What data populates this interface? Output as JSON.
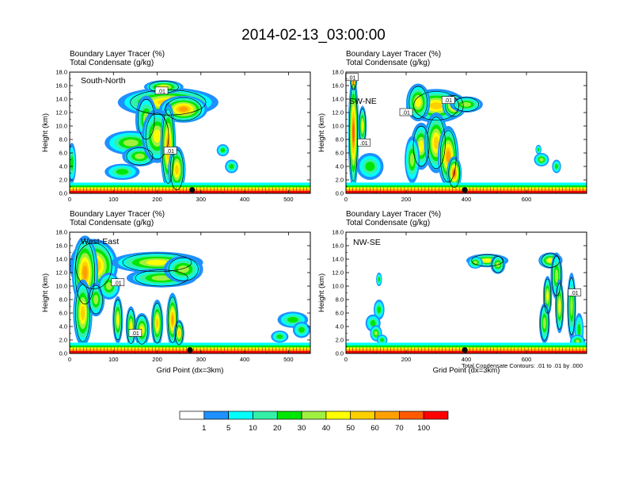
{
  "title": "2014-02-13_03:00:00",
  "colors": {
    "levels": [
      "#ffffff",
      "#1e90ff",
      "#00ffff",
      "#33f0a8",
      "#00e600",
      "#a0f040",
      "#ffff00",
      "#ffd000",
      "#ffa000",
      "#ff5a00",
      "#ff0000"
    ]
  },
  "chart_data": [
    {
      "type": "heatmap",
      "name": "South-North",
      "panel_label": "South-North",
      "field1": "Boundary Layer Tracer   (%)",
      "field2": "Total Condensate   (g/kg)",
      "ylabel": "Height (km)",
      "xlabel": "",
      "x_ticks": [
        "0",
        "100",
        "200",
        "300",
        "400",
        "500"
      ],
      "y_ticks": [
        "0.0",
        "2.0",
        "4.0",
        "6.0",
        "8.0",
        "10.0",
        "12.0",
        "14.0",
        "16.0",
        "18.0"
      ],
      "xlim": [
        0,
        550
      ],
      "ylim": [
        0,
        18
      ],
      "contour_labels": [
        ".01",
        ".01"
      ],
      "marker_x": 280,
      "blobs": [
        {
          "x": 50,
          "y": 15.0,
          "rx": 22,
          "ry": 2.6,
          "v": 40
        },
        {
          "x": 80,
          "y": 6.5,
          "rx": 10,
          "ry": 5.5,
          "v": 30
        }
      ]
    },
    {
      "type": "heatmap",
      "name": "SW-NE",
      "panel_label": "SW-NE",
      "field1": "Boundary Layer Tracer   (%)",
      "field2": "Total Condensate   (g/kg)",
      "ylabel": "Height (km)",
      "xlabel": "",
      "x_ticks": [
        "0",
        "200",
        "400",
        "600"
      ],
      "y_ticks": [
        "0.0",
        "2.0",
        "4.0",
        "6.0",
        "8.0",
        "10.0",
        "12.0",
        "14.0",
        "16.0",
        "18.0"
      ],
      "xlim": [
        0,
        800
      ],
      "ylim": [
        0,
        18
      ],
      "contour_labels": [
        ".01",
        ".01",
        ".01",
        ".01"
      ],
      "marker_x": 395
    },
    {
      "type": "heatmap",
      "name": "West-East",
      "panel_label": "West-East",
      "field1": "Boundary Layer Tracer   (%)",
      "field2": "Total Condensate   (g/kg)",
      "ylabel": "Height (km)",
      "xlabel": "Grid Point (dx=3km)",
      "x_ticks": [
        "0",
        "100",
        "200",
        "300",
        "400",
        "500"
      ],
      "y_ticks": [
        "0.0",
        "2.0",
        "4.0",
        "6.0",
        "8.0",
        "10.0",
        "12.0",
        "14.0",
        "16.0",
        "18.0"
      ],
      "xlim": [
        0,
        550
      ],
      "ylim": [
        0,
        18
      ],
      "contour_labels": [
        ".01",
        ".01"
      ],
      "marker_x": 275
    },
    {
      "type": "heatmap",
      "name": "NW-SE",
      "panel_label": "NW-SE",
      "field1": "Boundary Layer Tracer   (%)",
      "field2": "Total Condensate   (g/kg)",
      "ylabel": "Height (km)",
      "xlabel": "Grid Point (dx=3km)",
      "x_ticks": [
        "0",
        "200",
        "400",
        "600"
      ],
      "y_ticks": [
        "0.0",
        "2.0",
        "4.0",
        "6.0",
        "8.0",
        "10.0",
        "12.0",
        "14.0",
        "16.0",
        "18.0"
      ],
      "xlim": [
        0,
        800
      ],
      "ylim": [
        0,
        18
      ],
      "contour_labels": [
        ".01"
      ],
      "marker_x": 395,
      "note": "Total Condensate Contours: .01 to .01 by .000"
    }
  ],
  "colorbar": {
    "labels": [
      "1",
      "5",
      "10",
      "20",
      "30",
      "40",
      "50",
      "60",
      "70",
      "100"
    ]
  }
}
